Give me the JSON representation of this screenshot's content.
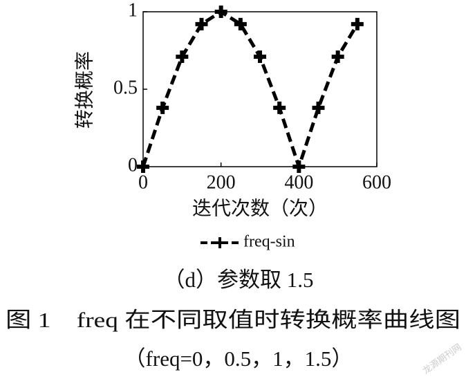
{
  "chart_data": {
    "type": "line",
    "x_label": "迭代次数（次）",
    "y_label": "转换概率",
    "series": [
      {
        "name": "freq-sin",
        "color": "#000000",
        "x": [
          0,
          50,
          100,
          150,
          200,
          250,
          300,
          350,
          400,
          450,
          500,
          550
        ],
        "values": [
          0,
          0.38,
          0.71,
          0.92,
          1,
          0.92,
          0.71,
          0.38,
          0,
          0.38,
          0.71,
          0.92
        ]
      }
    ],
    "xlim": [
      0,
      600
    ],
    "xticks": [
      0,
      200,
      400,
      600
    ],
    "ylim": [
      0,
      1
    ],
    "yticks": [
      0,
      0.5,
      1
    ],
    "legend": "bottom",
    "grid": false,
    "subcaption": "（d）参数取 1.5",
    "caption": "图 1　freq 在不同取值时转换概率曲线图",
    "caption_note": "（freq=0，0.5，1，1.5）",
    "watermark": "龙源期刊网"
  }
}
